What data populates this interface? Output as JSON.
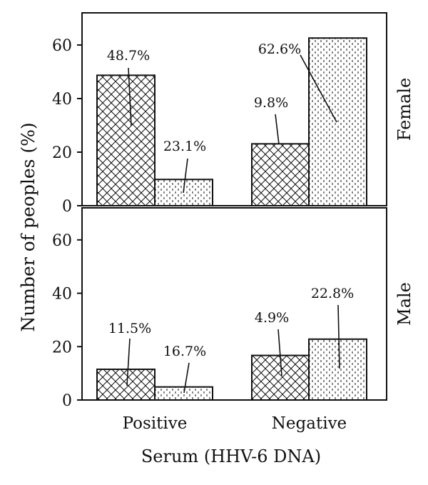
{
  "chart_data": {
    "type": "bar",
    "xlabel": "Serum (HHV-6 DNA)",
    "ylabel": "Number of peoples (%)",
    "categories": [
      "Positive",
      "Negative"
    ],
    "ylim": [
      0,
      72
    ],
    "yticks": [
      0,
      20,
      40,
      60
    ],
    "grid": false,
    "panels": [
      {
        "label": "Female",
        "series": [
          {
            "pattern": "crosshatch",
            "values": [
              48.7,
              23.1
            ],
            "value_labels": [
              "48.7%",
              "23.1%"
            ]
          },
          {
            "pattern": "dashed-vertical",
            "values": [
              9.8,
              62.6
            ],
            "value_labels": [
              "9.8%",
              "62.6%"
            ]
          }
        ]
      },
      {
        "label": "Male",
        "series": [
          {
            "pattern": "crosshatch",
            "values": [
              11.5,
              16.7
            ],
            "value_labels": [
              "11.5%",
              "16.7%"
            ]
          },
          {
            "pattern": "dashed-vertical",
            "values": [
              4.9,
              22.8
            ],
            "value_labels": [
              "4.9%",
              "22.8%"
            ]
          }
        ]
      }
    ]
  },
  "colors": {
    "ink": "#111111",
    "background": "#ffffff"
  }
}
